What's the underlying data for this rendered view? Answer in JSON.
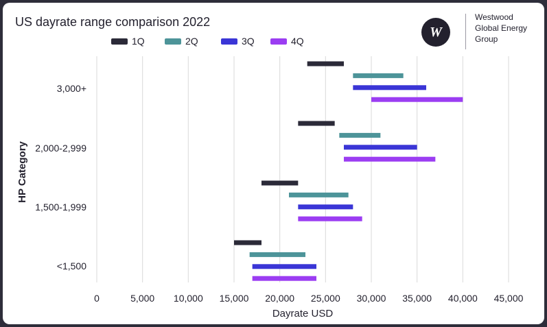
{
  "title": "US dayrate range comparison 2022",
  "brand": {
    "logo_letter": "W",
    "lines": [
      "Westwood",
      "Global Energy",
      "Group"
    ]
  },
  "colors": {
    "background_frame": "#2e2d3a",
    "plot_background": "#ffffff",
    "grid": "#d9d9d9",
    "text": "#23212e"
  },
  "chart_data": {
    "type": "bar",
    "orientation": "horizontal",
    "subtype": "floating-range",
    "title": "US dayrate range comparison 2022",
    "xlabel": "Dayrate USD",
    "ylabel": "HP Category",
    "xlim": [
      0,
      45000
    ],
    "xticks": [
      0,
      5000,
      10000,
      15000,
      20000,
      25000,
      30000,
      35000,
      40000,
      45000
    ],
    "xtick_labels": [
      "0",
      "5,000",
      "10,000",
      "15,000",
      "20,000",
      "25,000",
      "30,000",
      "35,000",
      "40,000",
      "45,000"
    ],
    "grid": "vertical",
    "legend_position": "top",
    "categories": [
      "3,000+",
      "2,000-2,999",
      "1,500-1,999",
      "<1,500"
    ],
    "series": [
      {
        "name": "1Q",
        "color": "#2b2a38",
        "ranges": [
          [
            23000,
            27000
          ],
          [
            22000,
            26000
          ],
          [
            18000,
            22000
          ],
          [
            15000,
            18000
          ]
        ]
      },
      {
        "name": "2Q",
        "color": "#4d9499",
        "ranges": [
          [
            28000,
            33500
          ],
          [
            26500,
            31000
          ],
          [
            21000,
            27500
          ],
          [
            16700,
            22800
          ]
        ]
      },
      {
        "name": "3Q",
        "color": "#3a35d6",
        "ranges": [
          [
            28000,
            36000
          ],
          [
            27000,
            35000
          ],
          [
            22000,
            28000
          ],
          [
            17000,
            24000
          ]
        ]
      },
      {
        "name": "4Q",
        "color": "#9b3df2",
        "ranges": [
          [
            30000,
            40000
          ],
          [
            27000,
            37000
          ],
          [
            22000,
            29000
          ],
          [
            17000,
            24000
          ]
        ]
      }
    ]
  }
}
